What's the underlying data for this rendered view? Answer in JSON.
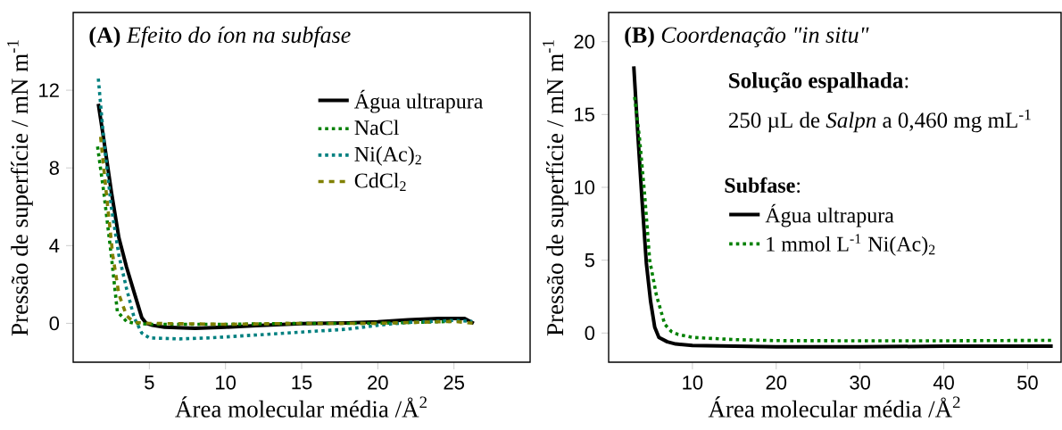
{
  "chart_data": [
    {
      "type": "line",
      "title": "**(A)** *Efeito do íon na subfase*",
      "xlabel": "Área molecular média /Å$^{2}$",
      "ylabel": "Pressão de superfície / mN m$^{-1}$",
      "xlim": [
        0,
        30
      ],
      "ylim": [
        -2,
        16
      ],
      "xticks": [
        5,
        10,
        15,
        20,
        25
      ],
      "yticks": [
        0,
        4,
        8,
        12
      ],
      "legend": "top right",
      "series": [
        {
          "name": "Água ultrapura",
          "color": "#000000",
          "line_style": "solid",
          "x": [
            1.65,
            2,
            2.5,
            3,
            3.5,
            4,
            4.5,
            4.8,
            5.2,
            6,
            8,
            10,
            12,
            15,
            18,
            20,
            22,
            24,
            25.7,
            26.3
          ],
          "values": [
            11.3,
            9.5,
            6.8,
            4.4,
            2.9,
            1.6,
            0.3,
            0,
            -0.1,
            -0.2,
            -0.25,
            -0.2,
            -0.12,
            -0.02,
            0.02,
            0.08,
            0.18,
            0.25,
            0.25,
            0
          ]
        },
        {
          "name": "NaCl",
          "color": "#008000",
          "line_style": "dotted",
          "x": [
            1.6,
            2,
            2.5,
            2.9,
            3.5,
            4,
            5,
            10,
            15,
            20,
            25
          ],
          "values": [
            9.1,
            6.8,
            3.5,
            0.6,
            0.1,
            0,
            -0.05,
            -0.05,
            0,
            0,
            0.1
          ]
        },
        {
          "name": "Ni(Ac)$_{2}$",
          "color": "#008080",
          "line_style": "dotted",
          "x": [
            1.65,
            2,
            2.5,
            3,
            3.5,
            4,
            4.5,
            5,
            7,
            9,
            12,
            15,
            18,
            20,
            22,
            25,
            26.2
          ],
          "values": [
            12.6,
            9.5,
            6,
            3.5,
            1.8,
            0.3,
            -0.5,
            -0.75,
            -0.8,
            -0.75,
            -0.6,
            -0.45,
            -0.3,
            -0.1,
            0.05,
            0.15,
            0.1
          ]
        },
        {
          "name": "CdCl$_{2}$",
          "color": "#808000",
          "line_style": "dashed",
          "x": [
            1.8,
            2.2,
            2.6,
            3,
            3.5,
            4,
            5,
            10,
            15,
            20,
            25,
            26.3
          ],
          "values": [
            9.6,
            6.5,
            3.5,
            1.5,
            0.4,
            0.05,
            0,
            -0.05,
            0,
            0,
            0.1,
            0
          ]
        }
      ]
    },
    {
      "type": "line",
      "title": "**(B)** *Coordenação \"in situ\"*",
      "xlabel": "Área molecular média /Å$^{2}$",
      "ylabel": "Pressão de superfície / mN m$^{-1}$",
      "xlim": [
        0,
        54
      ],
      "ylim": [
        -2,
        22
      ],
      "xticks": [
        10,
        20,
        30,
        40,
        50
      ],
      "yticks": [
        0,
        5,
        10,
        15,
        20
      ],
      "legend": "right",
      "legend_title": "**Subfase**:",
      "annotations": [
        "**Solução espalhada**:",
        "250 µL de *Salpn* a 0,460 mg mL$^{-1}$"
      ],
      "series": [
        {
          "name": "Água ultrapura",
          "color": "#000000",
          "line_style": "solid",
          "x": [
            3,
            3.5,
            4,
            4.5,
            5,
            5.5,
            6,
            7,
            8,
            10,
            15,
            20,
            30,
            40,
            53
          ],
          "values": [
            18.3,
            13.5,
            9,
            4.8,
            2.2,
            0.4,
            -0.3,
            -0.6,
            -0.75,
            -0.85,
            -0.9,
            -0.95,
            -0.95,
            -0.9,
            -0.9
          ]
        },
        {
          "name": "1 mmol L$^{-1}$ Ni(Ac)$_{2}$",
          "color": "#008000",
          "line_style": "dotted",
          "x": [
            3.1,
            3.7,
            4.3,
            4.9,
            5.7,
            6.7,
            7.5,
            8.3,
            10,
            15,
            20,
            30,
            40,
            53
          ],
          "values": [
            16.2,
            13.3,
            9.5,
            5,
            2.6,
            0.6,
            0.1,
            -0.1,
            -0.3,
            -0.45,
            -0.52,
            -0.53,
            -0.53,
            -0.5
          ]
        }
      ]
    }
  ]
}
